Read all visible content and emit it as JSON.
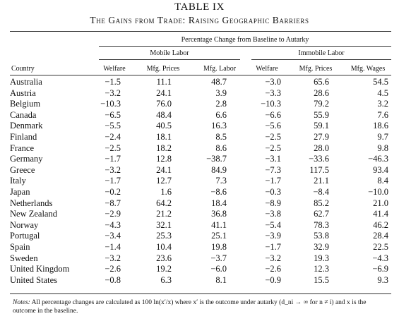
{
  "table": {
    "title": "TABLE IX",
    "subtitle": "The Gains from Trade: Raising Geographic Barriers",
    "spanner": "Percentage Change from Baseline to Autarky",
    "group_mobile": "Mobile Labor",
    "group_immobile": "Immobile Labor",
    "columns": [
      "Country",
      "Welfare",
      "Mfg. Prices",
      "Mfg. Labor",
      "Welfare",
      "Mfg. Prices",
      "Mfg. Wages"
    ],
    "rows": [
      [
        "Australia",
        "−1.5",
        "11.1",
        "48.7",
        "−3.0",
        "65.6",
        "54.5"
      ],
      [
        "Austria",
        "−3.2",
        "24.1",
        "3.9",
        "−3.3",
        "28.6",
        "4.5"
      ],
      [
        "Belgium",
        "−10.3",
        "76.0",
        "2.8",
        "−10.3",
        "79.2",
        "3.2"
      ],
      [
        "Canada",
        "−6.5",
        "48.4",
        "6.6",
        "−6.6",
        "55.9",
        "7.6"
      ],
      [
        "Denmark",
        "−5.5",
        "40.5",
        "16.3",
        "−5.6",
        "59.1",
        "18.6"
      ],
      [
        "Finland",
        "−2.4",
        "18.1",
        "8.5",
        "−2.5",
        "27.9",
        "9.7"
      ],
      [
        "France",
        "−2.5",
        "18.2",
        "8.6",
        "−2.5",
        "28.0",
        "9.8"
      ],
      [
        "Germany",
        "−1.7",
        "12.8",
        "−38.7",
        "−3.1",
        "−33.6",
        "−46.3"
      ],
      [
        "Greece",
        "−3.2",
        "24.1",
        "84.9",
        "−7.3",
        "117.5",
        "93.4"
      ],
      [
        "Italy",
        "−1.7",
        "12.7",
        "7.3",
        "−1.7",
        "21.1",
        "8.4"
      ],
      [
        "Japan",
        "−0.2",
        "1.6",
        "−8.6",
        "−0.3",
        "−8.4",
        "−10.0"
      ],
      [
        "Netherlands",
        "−8.7",
        "64.2",
        "18.4",
        "−8.9",
        "85.2",
        "21.0"
      ],
      [
        "New Zealand",
        "−2.9",
        "21.2",
        "36.8",
        "−3.8",
        "62.7",
        "41.4"
      ],
      [
        "Norway",
        "−4.3",
        "32.1",
        "41.1",
        "−5.4",
        "78.3",
        "46.2"
      ],
      [
        "Portugal",
        "−3.4",
        "25.3",
        "25.1",
        "−3.9",
        "53.8",
        "28.4"
      ],
      [
        "Spain",
        "−1.4",
        "10.4",
        "19.8",
        "−1.7",
        "32.9",
        "22.5"
      ],
      [
        "Sweden",
        "−3.2",
        "23.6",
        "−3.7",
        "−3.2",
        "19.3",
        "−4.3"
      ],
      [
        "United Kingdom",
        "−2.6",
        "19.2",
        "−6.0",
        "−2.6",
        "12.3",
        "−6.9"
      ],
      [
        "United States",
        "−0.8",
        "6.3",
        "8.1",
        "−0.9",
        "15.5",
        "9.3"
      ]
    ],
    "notes_label": "Notes:",
    "notes_text": "All percentage changes are calculated as 100 ln(x′/x) where x′ is the outcome under autarky (d_ni → ∞ for n ≠ i) and x is the outcome in the baseline."
  }
}
